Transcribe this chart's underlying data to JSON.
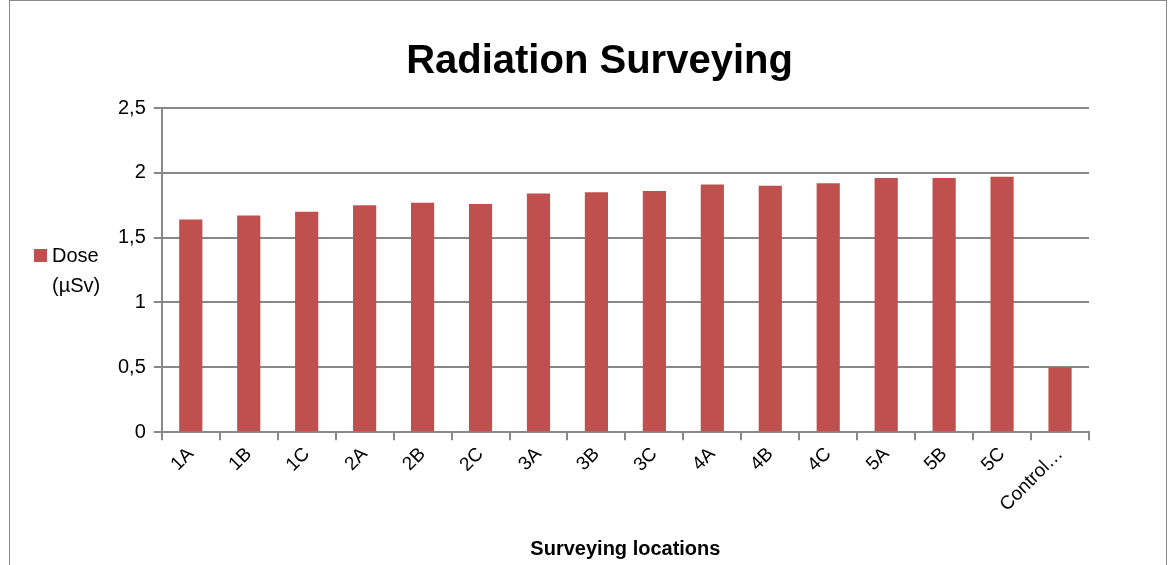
{
  "chart_data": {
    "type": "bar",
    "title": "Radiation Surveying",
    "xlabel": "Surveying locations",
    "categories": [
      "1A",
      "1B",
      "1C",
      "2A",
      "2B",
      "2C",
      "3A",
      "3B",
      "3C",
      "4A",
      "4B",
      "4C",
      "5A",
      "5B",
      "5C",
      "Control…"
    ],
    "series": [
      {
        "name": "Dose (µSv)",
        "color": "#c0504d",
        "values": [
          1.64,
          1.67,
          1.7,
          1.75,
          1.77,
          1.76,
          1.84,
          1.85,
          1.86,
          1.91,
          1.9,
          1.92,
          1.96,
          1.96,
          1.97,
          0.5
        ]
      }
    ],
    "ylim": [
      0,
      2.5
    ],
    "yticks": [
      0,
      {
        "value": 0.5,
        "label": "0,5"
      },
      1,
      {
        "value": 1.5,
        "label": "1,5"
      },
      2,
      {
        "value": 2.5,
        "label": "2,5"
      }
    ],
    "grid": "y",
    "legend": "left"
  }
}
